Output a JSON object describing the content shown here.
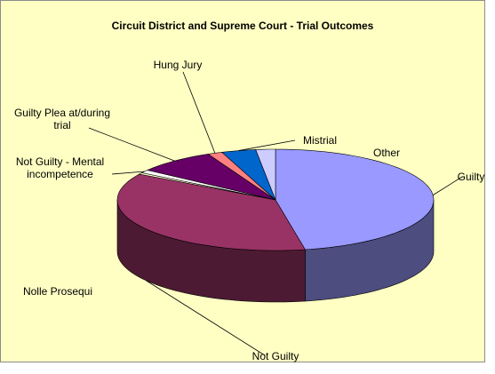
{
  "chart_data": {
    "type": "pie3d",
    "title": "Circuit District and Supreme Court - Trial Outcomes",
    "categories": [
      "Guilty",
      "Not Guilty",
      "Nolle Prosequi",
      "Not Guilty - Mental incompetence",
      "Guilty Plea at/during trial",
      "Hung Jury",
      "Mistrial",
      "Other"
    ],
    "values": [
      47,
      36.5,
      0.5,
      1,
      8,
      1.5,
      3.5,
      2
    ],
    "colors": [
      "#9999ff",
      "#993366",
      "#ffffcc",
      "#ffffff",
      "#660066",
      "#ff8080",
      "#0066cc",
      "#ccccff"
    ]
  }
}
